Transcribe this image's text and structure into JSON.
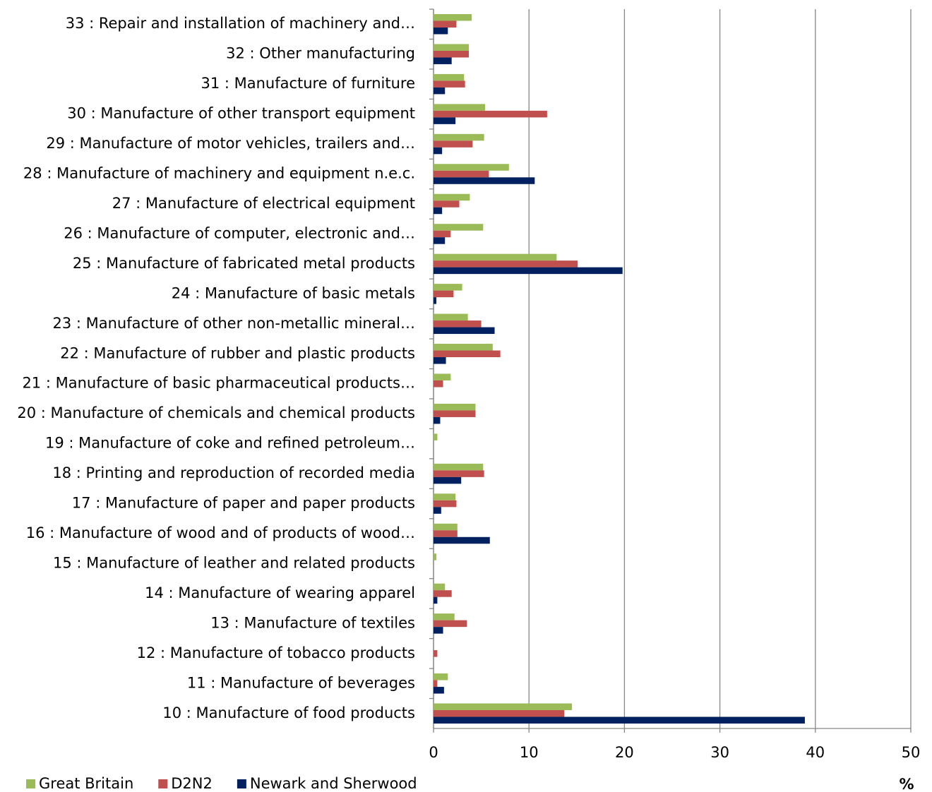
{
  "chart_data": {
    "type": "hbar",
    "categories": [
      "10 : Manufacture of food products",
      "11 : Manufacture of beverages",
      "12 : Manufacture of tobacco products",
      "13 : Manufacture of textiles",
      "14 : Manufacture of wearing apparel",
      "15 : Manufacture of leather and related products",
      "16 : Manufacture of wood and of products of wood…",
      "17 : Manufacture of paper and paper products",
      "18 : Printing and reproduction of recorded media",
      "19 : Manufacture of coke and refined petroleum…",
      "20 : Manufacture of chemicals and chemical products",
      "21 : Manufacture of basic pharmaceutical products…",
      "22 : Manufacture of rubber and plastic products",
      "23 : Manufacture of other non-metallic mineral…",
      "24 : Manufacture of basic metals",
      "25 : Manufacture of fabricated metal products",
      "26 : Manufacture of computer, electronic and…",
      "27 : Manufacture of electrical equipment",
      "28 : Manufacture of machinery and equipment n.e.c.",
      "29 : Manufacture of motor vehicles, trailers and…",
      "30 : Manufacture of other transport equipment",
      "31 : Manufacture of furniture",
      "32 : Other manufacturing",
      "33 : Repair and installation of machinery and…"
    ],
    "series": [
      {
        "name": "Great Britain",
        "color": "#9bbb59",
        "values": [
          14.5,
          1.5,
          0,
          2.2,
          1.2,
          0.3,
          2.5,
          2.3,
          5.2,
          0.4,
          4.4,
          1.8,
          6.2,
          3.6,
          3.0,
          12.9,
          5.2,
          3.8,
          7.9,
          5.3,
          5.4,
          3.2,
          3.7,
          4.0
        ]
      },
      {
        "name": "D2N2",
        "color": "#c0504d",
        "values": [
          13.7,
          0.4,
          0.4,
          3.5,
          1.9,
          0,
          2.5,
          2.4,
          5.3,
          0,
          4.4,
          1.0,
          7.0,
          5.0,
          2.1,
          15.1,
          1.8,
          2.7,
          5.8,
          4.1,
          11.9,
          3.3,
          3.7,
          2.4
        ]
      },
      {
        "name": "Newark and Sherwood",
        "color": "#002060",
        "values": [
          38.9,
          1.1,
          0,
          1.0,
          0.4,
          0,
          5.9,
          0.8,
          2.9,
          0,
          0.7,
          0,
          1.3,
          6.4,
          0.3,
          19.8,
          1.2,
          0.9,
          10.6,
          0.9,
          2.3,
          1.2,
          1.9,
          1.5
        ]
      }
    ],
    "xlim": [
      0,
      50
    ],
    "xticks": [
      0,
      10,
      20,
      30,
      40,
      50
    ],
    "x_label": "%",
    "grid": true
  }
}
